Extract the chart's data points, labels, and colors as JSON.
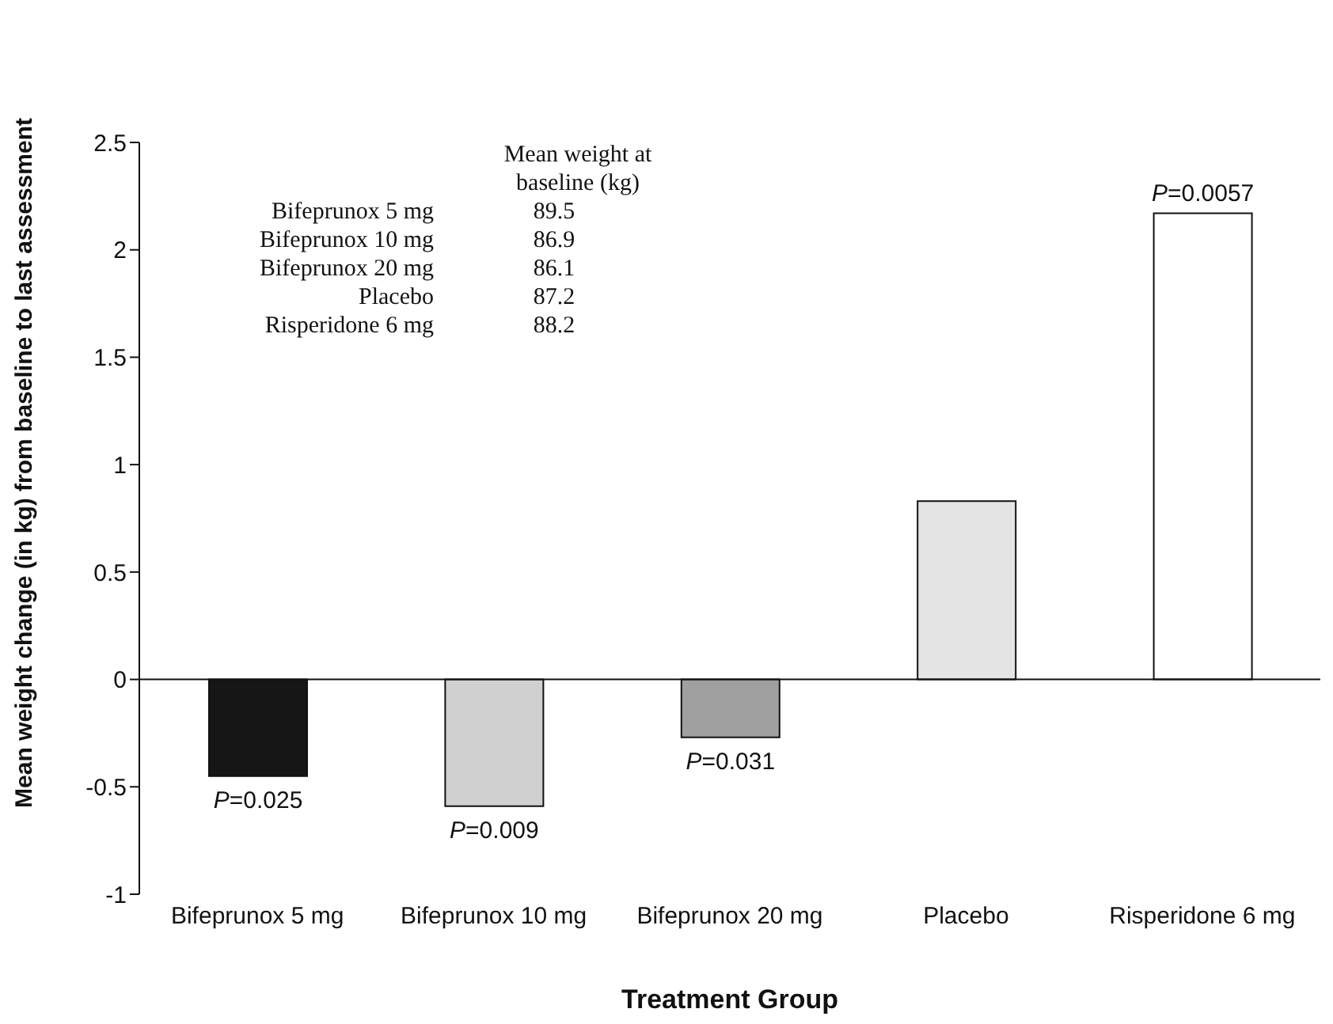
{
  "chart_data": {
    "type": "bar",
    "xlabel": "Treatment Group",
    "ylabel": "Mean weight change (in kg) from baseline to last assessment",
    "categories": [
      "Bifeprunox 5 mg",
      "Bifeprunox 10 mg",
      "Bifeprunox 20 mg",
      "Placebo",
      "Risperidone 6 mg"
    ],
    "values": [
      -0.45,
      -0.59,
      -0.27,
      0.83,
      2.17
    ],
    "colors": [
      "#161616",
      "#d0d0d0",
      "#a0a0a0",
      "#e4e4e4",
      "#ffffff"
    ],
    "ylim": [
      -1,
      2.5
    ],
    "yticks": [
      -1,
      -0.5,
      0,
      0.5,
      1,
      1.5,
      2,
      2.5
    ],
    "annotations": [
      "Mean weight at\nbaseline (kg)",
      "Bifeprunox 5 mg",
      "89.5",
      "Bifeprunox 10 mg",
      "86.9",
      "Bifeprunox 20 mg",
      "86.1",
      "Placebo",
      "87.2",
      "Risperidone 6 mg",
      "88.2",
      {
        "text": "P=0.025",
        "x": "Bifeprunox 5 mg",
        "y": -0.45
      },
      {
        "text": "P=0.009",
        "x": "Bifeprunox 10 mg",
        "y": -0.59
      },
      {
        "text": "P=0.031",
        "x": "Bifeprunox 20 mg",
        "y": -0.27
      },
      {
        "text": "P=0.0057",
        "x": "Risperidone 6 mg",
        "y": 2.17
      }
    ]
  }
}
